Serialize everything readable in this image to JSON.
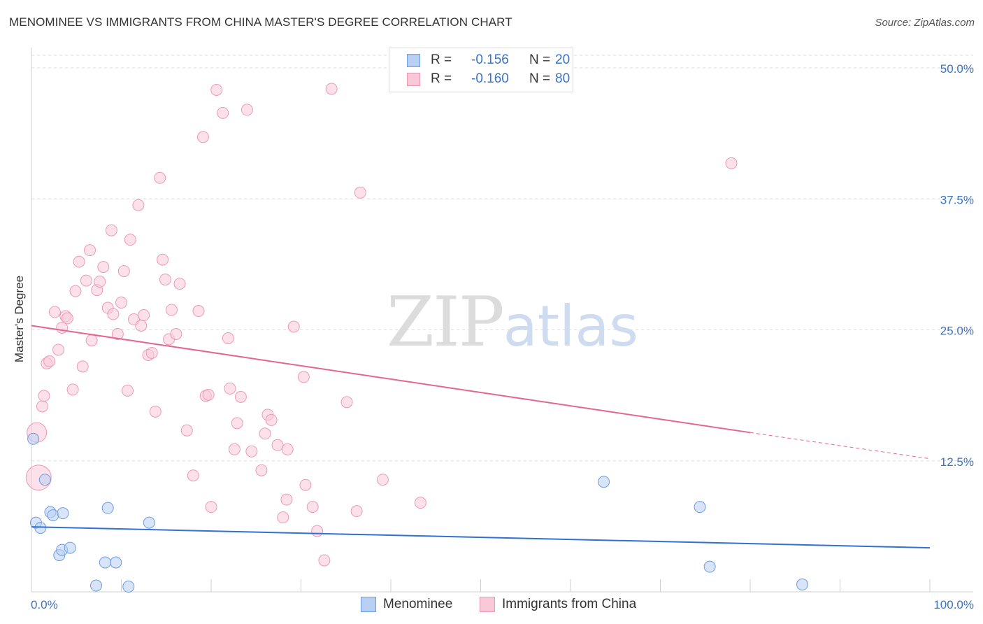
{
  "title": "MENOMINEE VS IMMIGRANTS FROM CHINA MASTER'S DEGREE CORRELATION CHART",
  "source": "Source: ZipAtlas.com",
  "watermark": {
    "zip": "ZIP",
    "atlas": "atlas"
  },
  "stats": [
    {
      "r_label": "R =",
      "r_value": "-0.156",
      "n_label": "N =",
      "n_value": "20"
    },
    {
      "r_label": "R =",
      "r_value": "-0.160",
      "n_label": "N =",
      "n_value": "80"
    }
  ],
  "legend": [
    {
      "label": "Menominee"
    },
    {
      "label": "Immigrants from China"
    }
  ],
  "colors": {
    "menominee_fill": "#b8d0f4",
    "menominee_stroke": "#6f9be0",
    "menominee_line": "#2f72d0",
    "china_fill": "#f9c9d8",
    "china_stroke": "#eb9ab6",
    "china_line": "#e4668f",
    "tick_label": "#3b73c5",
    "grid": "#dcdcdc",
    "axis": "#cfcfcf"
  },
  "chart_data": {
    "type": "scatter",
    "title": "MENOMINEE VS IMMIGRANTS FROM CHINA MASTER'S DEGREE CORRELATION CHART",
    "xlabel": "",
    "ylabel": "Master's Degree",
    "xlim": [
      0,
      100
    ],
    "ylim": [
      0,
      50
    ],
    "x_tick_labels": [
      "0.0%",
      "100.0%"
    ],
    "y_ticks": [
      12.5,
      25.0,
      37.5,
      50.0
    ],
    "y_tick_labels": [
      "12.5%",
      "25.0%",
      "37.5%",
      "50.0%"
    ],
    "grid": true,
    "series": [
      {
        "name": "Menominee",
        "r": -0.156,
        "n": 20,
        "trend": {
          "x": [
            0,
            100
          ],
          "y": [
            6.2,
            4.2
          ]
        },
        "points": [
          [
            0.2,
            14.6
          ],
          [
            0.5,
            6.6
          ],
          [
            1.0,
            6.1
          ],
          [
            1.5,
            10.7
          ],
          [
            2.1,
            7.6
          ],
          [
            2.4,
            7.3
          ],
          [
            3.1,
            3.5
          ],
          [
            3.4,
            4.0
          ],
          [
            3.5,
            7.5
          ],
          [
            4.3,
            4.2
          ],
          [
            7.2,
            0.6
          ],
          [
            8.2,
            2.8
          ],
          [
            8.5,
            8.0
          ],
          [
            9.4,
            2.8
          ],
          [
            10.8,
            0.5
          ],
          [
            13.1,
            6.6
          ],
          [
            63.7,
            10.5
          ],
          [
            74.4,
            8.1
          ],
          [
            75.5,
            2.4
          ],
          [
            85.8,
            0.7
          ]
        ]
      },
      {
        "name": "Immigrants from China",
        "r": -0.16,
        "n": 80,
        "trend": {
          "x": [
            0,
            80
          ],
          "y": [
            25.4,
            15.2
          ]
        },
        "trend_extension": {
          "x": [
            80,
            100
          ],
          "y": [
            15.2,
            12.7
          ]
        },
        "points": [
          [
            0.6,
            15.2
          ],
          [
            0.8,
            10.9
          ],
          [
            1.2,
            17.7
          ],
          [
            1.4,
            18.7
          ],
          [
            1.7,
            21.8
          ],
          [
            2.0,
            22.0
          ],
          [
            2.6,
            26.7
          ],
          [
            3.0,
            23.1
          ],
          [
            3.4,
            25.2
          ],
          [
            3.8,
            26.3
          ],
          [
            4.0,
            26.1
          ],
          [
            4.6,
            19.3
          ],
          [
            4.9,
            28.7
          ],
          [
            5.3,
            31.5
          ],
          [
            5.7,
            21.5
          ],
          [
            6.1,
            29.7
          ],
          [
            6.5,
            32.6
          ],
          [
            6.7,
            24.0
          ],
          [
            7.3,
            28.8
          ],
          [
            7.6,
            29.6
          ],
          [
            8.0,
            31.0
          ],
          [
            8.5,
            27.1
          ],
          [
            8.9,
            34.5
          ],
          [
            9.1,
            26.5
          ],
          [
            9.6,
            24.6
          ],
          [
            10.0,
            27.6
          ],
          [
            10.3,
            30.6
          ],
          [
            10.7,
            19.2
          ],
          [
            11.0,
            33.6
          ],
          [
            11.4,
            26.0
          ],
          [
            11.9,
            36.9
          ],
          [
            12.2,
            25.4
          ],
          [
            12.5,
            26.4
          ],
          [
            13.0,
            22.6
          ],
          [
            13.4,
            22.8
          ],
          [
            13.8,
            17.2
          ],
          [
            14.3,
            39.5
          ],
          [
            14.6,
            31.7
          ],
          [
            14.9,
            29.8
          ],
          [
            15.3,
            24.1
          ],
          [
            15.6,
            26.9
          ],
          [
            16.1,
            24.6
          ],
          [
            16.5,
            29.4
          ],
          [
            17.3,
            15.4
          ],
          [
            18.0,
            11.1
          ],
          [
            18.6,
            26.8
          ],
          [
            19.1,
            43.4
          ],
          [
            19.4,
            18.7
          ],
          [
            19.7,
            18.8
          ],
          [
            20.0,
            8.1
          ],
          [
            20.6,
            47.9
          ],
          [
            21.3,
            45.7
          ],
          [
            21.9,
            24.2
          ],
          [
            22.1,
            19.4
          ],
          [
            22.6,
            13.6
          ],
          [
            22.9,
            16.1
          ],
          [
            23.3,
            18.6
          ],
          [
            24.0,
            46.0
          ],
          [
            24.5,
            13.4
          ],
          [
            25.6,
            11.6
          ],
          [
            26.0,
            15.1
          ],
          [
            26.3,
            16.9
          ],
          [
            26.7,
            16.4
          ],
          [
            27.4,
            14.0
          ],
          [
            28.0,
            7.1
          ],
          [
            28.4,
            8.8
          ],
          [
            28.5,
            13.6
          ],
          [
            29.2,
            25.3
          ],
          [
            30.3,
            20.5
          ],
          [
            30.5,
            10.2
          ],
          [
            31.3,
            8.1
          ],
          [
            31.8,
            5.8
          ],
          [
            32.6,
            3.0
          ],
          [
            33.4,
            48.0
          ],
          [
            35.1,
            18.1
          ],
          [
            36.2,
            7.7
          ],
          [
            36.6,
            38.1
          ],
          [
            39.1,
            10.7
          ],
          [
            43.3,
            8.5
          ],
          [
            77.9,
            40.9
          ]
        ]
      }
    ]
  }
}
